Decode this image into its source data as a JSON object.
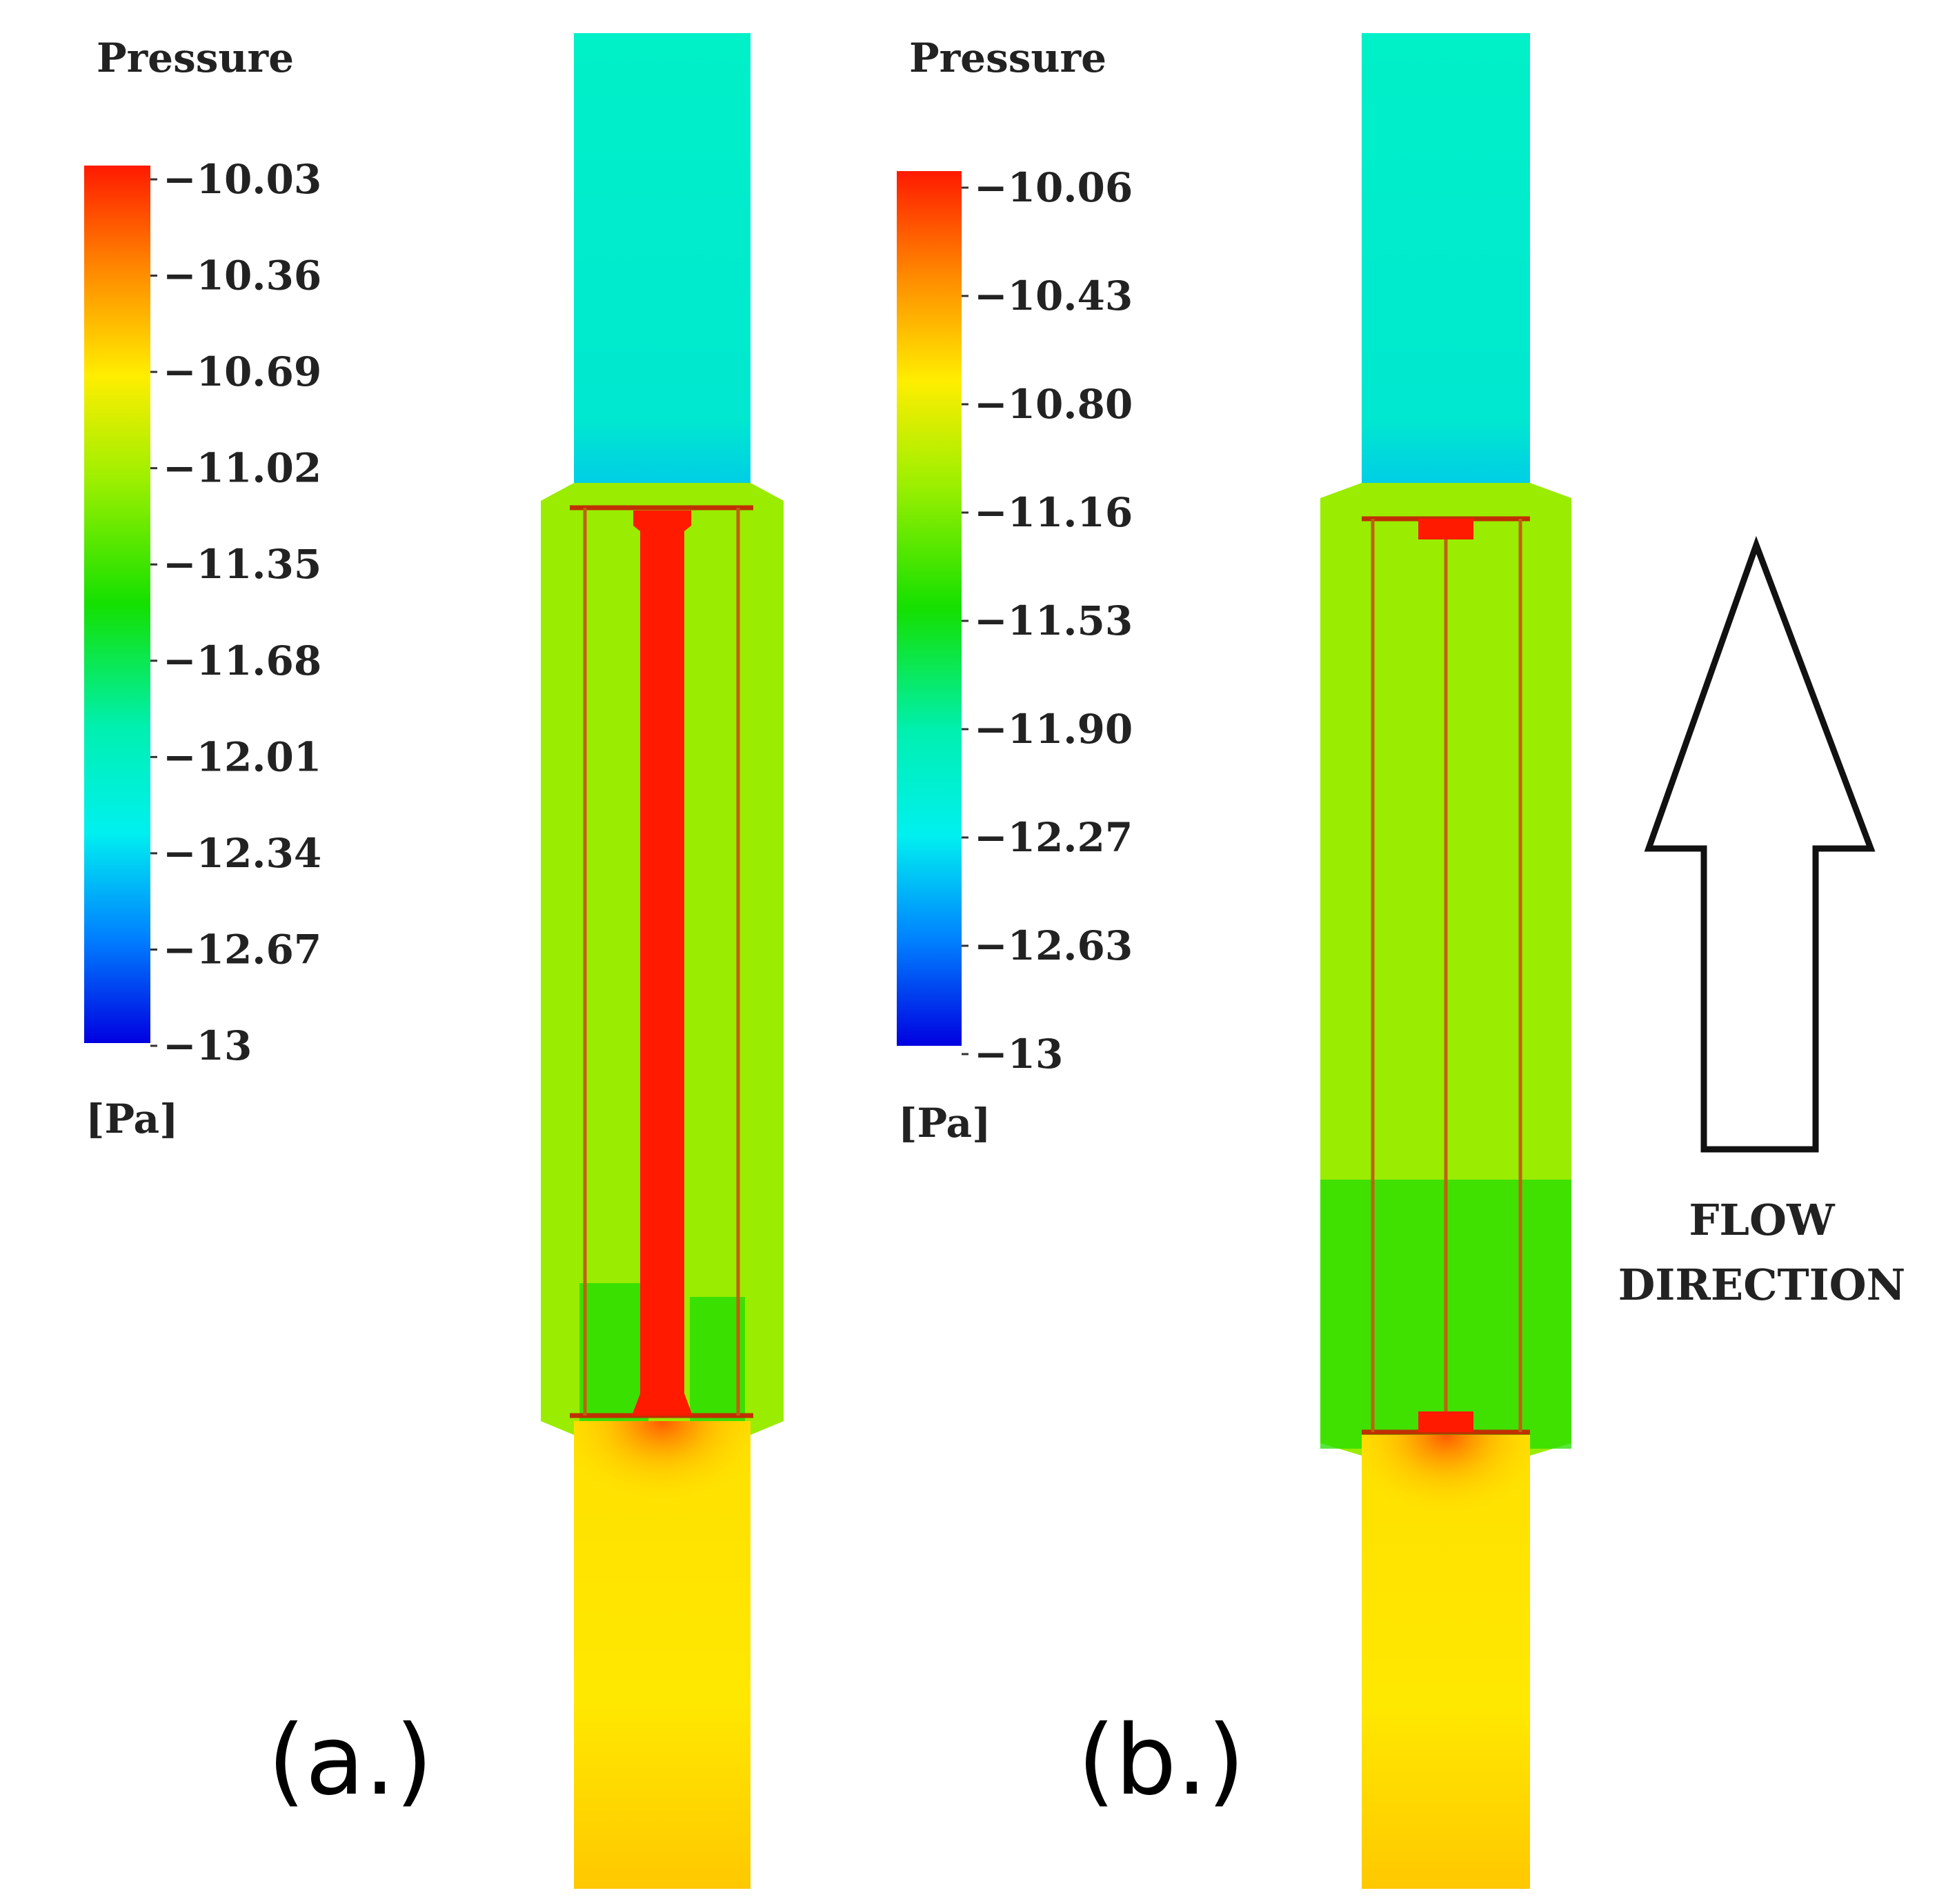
{
  "panels": [
    {
      "id": "a",
      "label": "(a.)",
      "legend": {
        "title": "Pressure",
        "unit": "[Pa]",
        "ticks": [
          "−10.03",
          "−10.36",
          "−10.69",
          "−11.02",
          "−11.35",
          "−11.68",
          "−12.01",
          "−12.34",
          "−12.67",
          "−13"
        ]
      }
    },
    {
      "id": "b",
      "label": "(b.)",
      "legend": {
        "title": "Pressure",
        "unit": "[Pa]",
        "ticks": [
          "−10.06",
          "−10.43",
          "−10.80",
          "−11.16",
          "−11.53",
          "−11.90",
          "−12.27",
          "−12.63",
          "−13"
        ]
      }
    }
  ],
  "flow_direction": {
    "line1": "FLOW",
    "line2": "DIRECTION"
  },
  "colors": {
    "high": "#ff1a00",
    "orange": "#ff8a00",
    "yellow": "#ffee00",
    "yellow_green": "#9bef00",
    "green": "#14e000",
    "cyan_green": "#00f0b0",
    "cyan": "#00f0f0",
    "blue": "#0080ff",
    "low": "#0000e0",
    "outlet": "#00f0c0",
    "inlet": "#ffe000",
    "body": "#9aec00",
    "wire": "#c06010"
  }
}
